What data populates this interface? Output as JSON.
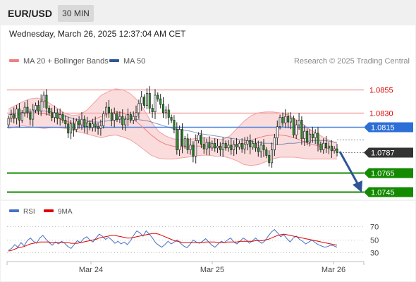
{
  "header": {
    "pair": "EUR/USD",
    "timeframe": "30 MIN"
  },
  "timestamp": "Wednesday, March 26, 2025 12:37:04 AM CET",
  "legend": {
    "bb_label": "MA 20 + Bollinger Bands",
    "ma50_label": "MA 50",
    "credit": "Research © 2025 Trading Central",
    "colors": {
      "bb": "#f08080",
      "ma50": "#2f5597"
    }
  },
  "rsi_legend": {
    "rsi_label": "RSI",
    "ma9_label": "9MA",
    "colors": {
      "rsi": "#4472c4",
      "ma9": "#e00000"
    }
  },
  "chart_data": [
    {
      "type": "candlestick",
      "title": "",
      "x_ticks": [
        "Mar 24",
        "Mar 25",
        "Mar 26"
      ],
      "ylim": [
        1.0737,
        1.0878
      ],
      "price_levels": [
        {
          "label": "1.0855",
          "value": 1.0855,
          "kind": "resistance",
          "color": "#e00000",
          "line": "#f4aaaa"
        },
        {
          "label": "1.0830",
          "value": 1.083,
          "kind": "resistance",
          "color": "#e00000",
          "line": "#f4aaaa"
        },
        {
          "label": "1.0815",
          "value": 1.0815,
          "kind": "pivot",
          "color": "#2d6fd6",
          "line": "#4a82e0"
        },
        {
          "label": "1.0787",
          "value": 1.0787,
          "kind": "last-price",
          "color": "#333333",
          "line": "#888888"
        },
        {
          "label": "1.0765",
          "value": 1.0765,
          "kind": "support",
          "color": "#138a00",
          "line": "#138a00"
        },
        {
          "label": "1.0745",
          "value": 1.0745,
          "kind": "support",
          "color": "#138a00",
          "line": "#138a00"
        }
      ],
      "candles": [
        [
          1.0817,
          1.0824
        ],
        [
          1.0824,
          1.0828
        ],
        [
          1.0828,
          1.0824
        ],
        [
          1.0824,
          1.0834
        ],
        [
          1.0834,
          1.0822
        ],
        [
          1.0822,
          1.083
        ],
        [
          1.083,
          1.0836
        ],
        [
          1.0836,
          1.083
        ],
        [
          1.083,
          1.0823
        ],
        [
          1.0823,
          1.0833
        ],
        [
          1.0833,
          1.0838
        ],
        [
          1.0838,
          1.0832
        ],
        [
          1.0832,
          1.0842
        ],
        [
          1.0842,
          1.0849
        ],
        [
          1.0849,
          1.0835
        ],
        [
          1.0835,
          1.083
        ],
        [
          1.083,
          1.0825
        ],
        [
          1.0825,
          1.083
        ],
        [
          1.083,
          1.0824
        ],
        [
          1.0824,
          1.0828
        ],
        [
          1.0828,
          1.0822
        ],
        [
          1.0822,
          1.0818
        ],
        [
          1.0818,
          1.0808
        ],
        [
          1.0808,
          1.0818
        ],
        [
          1.0818,
          1.0812
        ],
        [
          1.0812,
          1.0821
        ],
        [
          1.0821,
          1.0817
        ],
        [
          1.0817,
          1.0823
        ],
        [
          1.0823,
          1.0815
        ],
        [
          1.0815,
          1.0819
        ],
        [
          1.0819,
          1.0814
        ],
        [
          1.0814,
          1.0818
        ],
        [
          1.0818,
          1.0815
        ],
        [
          1.0815,
          1.0813
        ],
        [
          1.0813,
          1.0816
        ],
        [
          1.0816,
          1.0829
        ],
        [
          1.0829,
          1.0836
        ],
        [
          1.0836,
          1.083
        ],
        [
          1.083,
          1.0822
        ],
        [
          1.0822,
          1.0829
        ],
        [
          1.0829,
          1.0823
        ],
        [
          1.0823,
          1.0826
        ],
        [
          1.0826,
          1.0817
        ],
        [
          1.0817,
          1.0823
        ],
        [
          1.0823,
          1.0828
        ],
        [
          1.0828,
          1.0822
        ],
        [
          1.0822,
          1.0826
        ],
        [
          1.0826,
          1.083
        ],
        [
          1.083,
          1.084
        ],
        [
          1.084,
          1.0847
        ],
        [
          1.0847,
          1.0838
        ],
        [
          1.0838,
          1.0851
        ],
        [
          1.0851,
          1.0835
        ],
        [
          1.0835,
          1.0831
        ],
        [
          1.0831,
          1.0849
        ],
        [
          1.0849,
          1.0845
        ],
        [
          1.0845,
          1.0839
        ],
        [
          1.0839,
          1.083
        ],
        [
          1.083,
          1.0833
        ],
        [
          1.0833,
          1.0825
        ],
        [
          1.0825,
          1.0822
        ],
        [
          1.0822,
          1.0812
        ],
        [
          1.0812,
          1.079
        ],
        [
          1.079,
          1.0812
        ],
        [
          1.0812,
          1.0794
        ],
        [
          1.0794,
          1.0802
        ],
        [
          1.0802,
          1.079
        ],
        [
          1.079,
          1.0795
        ],
        [
          1.0795,
          1.0783
        ],
        [
          1.0783,
          1.08
        ],
        [
          1.08,
          1.0806
        ],
        [
          1.0806,
          1.0796
        ],
        [
          1.0796,
          1.0791
        ],
        [
          1.0791,
          1.0798
        ],
        [
          1.0798,
          1.0792
        ],
        [
          1.0792,
          1.0797
        ],
        [
          1.0797,
          1.0792
        ],
        [
          1.0792,
          1.0794
        ],
        [
          1.0794,
          1.079
        ],
        [
          1.079,
          1.0797
        ],
        [
          1.0797,
          1.0792
        ],
        [
          1.0792,
          1.0795
        ],
        [
          1.0795,
          1.079
        ],
        [
          1.079,
          1.0796
        ],
        [
          1.0796,
          1.0793
        ],
        [
          1.0793,
          1.0797
        ],
        [
          1.0797,
          1.0791
        ],
        [
          1.0791,
          1.0796
        ],
        [
          1.0796,
          1.08
        ],
        [
          1.08,
          1.0793
        ],
        [
          1.0793,
          1.0797
        ],
        [
          1.0797,
          1.0792
        ],
        [
          1.0792,
          1.0788
        ],
        [
          1.0788,
          1.0795
        ],
        [
          1.0795,
          1.079
        ],
        [
          1.079,
          1.0784
        ],
        [
          1.0784,
          1.0776
        ],
        [
          1.0776,
          1.079
        ],
        [
          1.079,
          1.0803
        ],
        [
          1.0803,
          1.0815
        ],
        [
          1.0815,
          1.0825
        ],
        [
          1.0825,
          1.0819
        ],
        [
          1.0819,
          1.0826
        ],
        [
          1.0826,
          1.082
        ],
        [
          1.082,
          1.0824
        ],
        [
          1.0824,
          1.0806
        ],
        [
          1.0806,
          1.0817
        ],
        [
          1.0817,
          1.0822
        ],
        [
          1.0822,
          1.0802
        ],
        [
          1.0802,
          1.081
        ],
        [
          1.081,
          1.0798
        ],
        [
          1.0798,
          1.0807
        ],
        [
          1.0807,
          1.0803
        ],
        [
          1.0803,
          1.0808
        ],
        [
          1.0808,
          1.0796
        ],
        [
          1.0796,
          1.079
        ],
        [
          1.079,
          1.0797
        ],
        [
          1.0797,
          1.0792
        ],
        [
          1.0792,
          1.0794
        ],
        [
          1.0794,
          1.0789
        ],
        [
          1.0789,
          1.0791
        ],
        [
          1.0791,
          1.0787
        ]
      ],
      "ma50": [
        1.0828,
        1.0829,
        1.083,
        1.0831,
        1.0831,
        1.0832,
        1.0832,
        1.0831,
        1.0829,
        1.0827,
        1.0825,
        1.0823,
        1.0822,
        1.0821,
        1.082,
        1.082,
        1.0821,
        1.0822,
        1.0823,
        1.0824,
        1.0824,
        1.0823,
        1.0822,
        1.0821,
        1.0819,
        1.0817,
        1.0815,
        1.0813,
        1.0812,
        1.0811,
        1.081,
        1.0808,
        1.0807,
        1.0806,
        1.0805,
        1.0804,
        1.0803,
        1.0802,
        1.0801,
        1.08,
        1.0799,
        1.0798,
        1.0797,
        1.0797,
        1.0796,
        1.0796,
        1.0797,
        1.0797,
        1.0798,
        1.0799,
        1.08,
        1.08,
        1.08,
        1.0799,
        1.0798
      ],
      "bb_mid": [
        1.0824,
        1.0827,
        1.0829,
        1.083,
        1.083,
        1.0829,
        1.0827,
        1.0824,
        1.0821,
        1.0819,
        1.0818,
        1.082,
        1.0823,
        1.0826,
        1.0829,
        1.0831,
        1.083,
        1.0826,
        1.082,
        1.0813,
        1.0806,
        1.08,
        1.0796,
        1.0794,
        1.0793,
        1.0793,
        1.0794,
        1.0794,
        1.0794,
        1.0793,
        1.0792,
        1.0793,
        1.0795,
        1.0797,
        1.08,
        1.0803,
        1.0805,
        1.0806,
        1.0806,
        1.0805,
        1.0803,
        1.08,
        1.0797,
        1.0795,
        1.0793,
        1.0791,
        1.079
      ],
      "bb_upper": [
        1.0834,
        1.0838,
        1.0842,
        1.0845,
        1.0846,
        1.0844,
        1.0839,
        1.0834,
        1.0829,
        1.0827,
        1.0828,
        1.0833,
        1.0841,
        1.0849,
        1.0853,
        1.0856,
        1.0855,
        1.0851,
        1.0844,
        1.0833,
        1.082,
        1.081,
        1.0805,
        1.0802,
        1.0801,
        1.0801,
        1.0802,
        1.0803,
        1.0803,
        1.0802,
        1.0801,
        1.0805,
        1.0813,
        1.0821,
        1.0827,
        1.083,
        1.0831,
        1.0831,
        1.083,
        1.0828,
        1.0824,
        1.0819,
        1.0813,
        1.0808,
        1.0804,
        1.08,
        1.0797
      ],
      "bb_lower": [
        1.0813,
        1.0815,
        1.0816,
        1.0815,
        1.0814,
        1.0813,
        1.0814,
        1.0814,
        1.0813,
        1.0811,
        1.0809,
        1.0807,
        1.0805,
        1.0803,
        1.0805,
        1.0806,
        1.0804,
        1.0801,
        1.0796,
        1.079,
        1.0784,
        1.0781,
        1.078,
        1.078,
        1.0781,
        1.0782,
        1.0783,
        1.0784,
        1.0784,
        1.0783,
        1.0783,
        1.0781,
        1.0778,
        1.0774,
        1.0773,
        1.0774,
        1.0777,
        1.078,
        1.0782,
        1.0782,
        1.0782,
        1.0781,
        1.078,
        1.078,
        1.078,
        1.078,
        1.078
      ]
    },
    {
      "type": "line",
      "title": "",
      "ylim": [
        25,
        75
      ],
      "y_ticks": [
        "70",
        "50",
        "30"
      ],
      "series": [
        {
          "name": "RSI",
          "values": [
            33,
            36,
            42,
            38,
            45,
            40,
            48,
            52,
            47,
            44,
            52,
            56,
            50,
            45,
            41,
            46,
            43,
            47,
            44,
            39,
            36,
            42,
            48,
            45,
            51,
            54,
            49,
            46,
            52,
            58,
            55,
            50,
            53,
            49,
            44,
            47,
            43,
            46,
            42,
            48,
            56,
            63,
            60,
            55,
            63,
            58,
            52,
            45,
            41,
            38,
            42,
            47,
            43,
            46,
            49,
            44,
            40,
            37,
            42,
            49,
            46,
            44,
            47,
            51,
            46,
            41,
            38,
            43,
            47,
            45,
            49,
            52,
            46,
            43,
            47,
            52,
            49,
            44,
            48,
            52,
            47,
            44,
            48,
            55,
            61,
            65,
            60,
            54,
            57,
            51,
            46,
            52,
            55,
            50,
            47,
            43,
            46,
            49,
            45,
            42,
            40,
            38,
            39,
            41,
            40,
            38
          ]
        },
        {
          "name": "9MA",
          "values": [
            32,
            33,
            35,
            37,
            38,
            39,
            41,
            43,
            44,
            45,
            46,
            46,
            46,
            46,
            45,
            45,
            45,
            45,
            45,
            45,
            44,
            44,
            44,
            45,
            46,
            47,
            48,
            49,
            50,
            52,
            53,
            54,
            55,
            56,
            56,
            55,
            54,
            53,
            52,
            52,
            53,
            54,
            55,
            56,
            57,
            58,
            59,
            59,
            58,
            56,
            54,
            52,
            50,
            48,
            47,
            46,
            45,
            45,
            45,
            45,
            45,
            45,
            45,
            46,
            46,
            46,
            46,
            45,
            45,
            45,
            46,
            46,
            46,
            46,
            47,
            47,
            47,
            47,
            47,
            48,
            48,
            48,
            49,
            50,
            52,
            54,
            56,
            57,
            58,
            57,
            56,
            55,
            54,
            53,
            52,
            51,
            50,
            49,
            48,
            47,
            46,
            45,
            44,
            43,
            42,
            41
          ]
        }
      ]
    }
  ]
}
